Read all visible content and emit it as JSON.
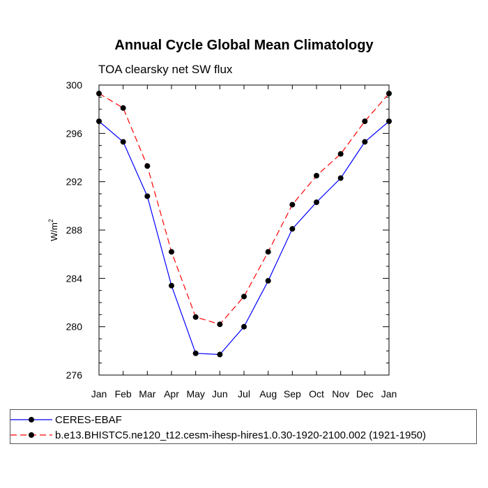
{
  "chart_data": {
    "type": "line",
    "title": "Annual Cycle Global Mean Climatology",
    "subtitle": "TOA clearsky net SW flux",
    "xlabel": "",
    "ylabel": "W/m",
    "ylabel_sup": "2",
    "categories": [
      "Jan",
      "Feb",
      "Mar",
      "Apr",
      "May",
      "Jun",
      "Jul",
      "Aug",
      "Sep",
      "Oct",
      "Nov",
      "Dec",
      "Jan"
    ],
    "ylim": [
      276,
      300
    ],
    "yticks": [
      276,
      280,
      284,
      288,
      292,
      296,
      300
    ],
    "grid": false,
    "legend_position": "bottom",
    "series": [
      {
        "name": "CERES-EBAF",
        "color": "#0000ff",
        "line_style": "solid",
        "marker": "filled-circle",
        "values": [
          297.0,
          295.3,
          290.8,
          283.4,
          277.8,
          277.7,
          280.0,
          283.8,
          288.1,
          290.3,
          292.3,
          295.3,
          297.0
        ]
      },
      {
        "name": "b.e13.BHISTC5.ne120_t12.cesm-ihesp-hires1.0.30-1920-2100.002 (1921-1950)",
        "color": "#ff0000",
        "line_style": "dashed",
        "marker": "filled-circle",
        "values": [
          299.3,
          298.1,
          293.3,
          286.2,
          280.8,
          280.2,
          282.5,
          286.2,
          290.1,
          292.5,
          294.3,
          297.0,
          299.3
        ]
      }
    ]
  }
}
